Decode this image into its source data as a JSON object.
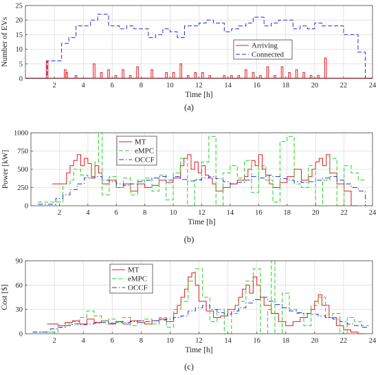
{
  "colors": {
    "red": "#e8141d",
    "blue": "#1f2fe0",
    "green": "#1ed21e",
    "grid": "#dddddd",
    "axis": "#444444"
  },
  "chart_data": [
    {
      "id": "a",
      "type": "line",
      "panel_label": "(a)",
      "xlabel": "Time [h]",
      "ylabel": "Number of EVs",
      "xlim": [
        0,
        24
      ],
      "ylim": [
        0,
        25
      ],
      "xticks": [
        2,
        4,
        6,
        8,
        10,
        12,
        14,
        16,
        18,
        20,
        22,
        24
      ],
      "yticks": [
        0,
        5,
        10,
        15,
        20,
        25
      ],
      "grid": true,
      "legend_position": "center-right",
      "series": [
        {
          "name": "Arriving",
          "color": "red",
          "style": "solid",
          "render": "spikes",
          "x": [
            1.5,
            2.75,
            2.85,
            3.5,
            4.75,
            5.25,
            5.75,
            6.25,
            6.75,
            7.25,
            7.75,
            8.75,
            9.75,
            10.25,
            10.75,
            11.25,
            11.75,
            12.25,
            12.75,
            13.75,
            14.25,
            14.75,
            15.25,
            15.75,
            16.25,
            16.75,
            17.25,
            17.75,
            18.25,
            18.75,
            19.25,
            19.75,
            20.25,
            20.75
          ],
          "values": [
            6,
            3,
            2,
            1,
            5,
            2,
            3,
            1,
            3,
            1,
            4,
            3,
            2,
            2,
            5,
            1,
            2,
            2,
            1,
            1,
            1,
            1,
            3,
            2,
            1,
            4,
            1,
            4,
            2,
            3,
            2,
            1,
            1,
            7
          ]
        },
        {
          "name": "Connected",
          "color": "blue",
          "style": "dashed",
          "render": "step",
          "x": [
            0,
            1.5,
            2.5,
            3,
            3.5,
            4.5,
            5,
            5.75,
            6.5,
            7,
            7.5,
            8.5,
            9,
            9.5,
            10,
            10.5,
            11,
            12,
            12.5,
            13,
            13.75,
            14.25,
            14.75,
            15.25,
            15.75,
            16.5,
            17,
            17.5,
            18.5,
            19,
            19.5,
            20,
            20.5,
            22,
            23,
            23.5
          ],
          "values": [
            0,
            6,
            12,
            14,
            18,
            20,
            22,
            18,
            17,
            18,
            17,
            14,
            15,
            17,
            16,
            14,
            18,
            19,
            20,
            19,
            16,
            17,
            18,
            19,
            21,
            18,
            19,
            20,
            17,
            18,
            17,
            19,
            18,
            15,
            9,
            0
          ]
        }
      ]
    },
    {
      "id": "b",
      "type": "line",
      "panel_label": "(b)",
      "xlabel": "Time [h]",
      "ylabel": "Power [kW]",
      "xlim": [
        0,
        24
      ],
      "ylim": [
        0,
        1000
      ],
      "xticks": [
        2,
        4,
        6,
        8,
        10,
        12,
        14,
        16,
        18,
        20,
        22,
        24
      ],
      "yticks": [
        0,
        250,
        500,
        750,
        1000
      ],
      "grid": true,
      "legend_position": "top-left",
      "series": [
        {
          "name": "MT",
          "color": "red",
          "style": "solid",
          "render": "step",
          "x": [
            1.5,
            2.5,
            2.75,
            3,
            3.25,
            3.5,
            3.75,
            4,
            4.25,
            4.5,
            4.75,
            5,
            5.5,
            6,
            6.5,
            7,
            7.5,
            8,
            8.5,
            9,
            9.5,
            10,
            10.5,
            10.75,
            11,
            11.25,
            11.5,
            11.75,
            12,
            12.25,
            12.5,
            12.75,
            13,
            13.5,
            14,
            14.5,
            15,
            15.25,
            15.5,
            15.75,
            16,
            16.25,
            16.5,
            16.75,
            17,
            17.5,
            18,
            18.5,
            19,
            19.5,
            19.75,
            20,
            20.25,
            20.5,
            20.75,
            21,
            21.5,
            22,
            22.5
          ],
          "values": [
            300,
            450,
            550,
            620,
            700,
            550,
            650,
            580,
            400,
            550,
            450,
            300,
            350,
            250,
            300,
            200,
            300,
            250,
            280,
            350,
            320,
            380,
            550,
            650,
            700,
            500,
            600,
            450,
            550,
            420,
            380,
            300,
            200,
            250,
            300,
            350,
            400,
            500,
            620,
            550,
            700,
            500,
            420,
            300,
            250,
            320,
            400,
            500,
            350,
            400,
            500,
            600,
            650,
            550,
            700,
            450,
            300,
            200,
            0
          ]
        },
        {
          "name": "eMPC",
          "color": "green",
          "style": "dashed",
          "render": "step",
          "x": [
            0.5,
            2.25,
            2.75,
            3,
            3.5,
            4,
            4.5,
            4.75,
            5,
            5.5,
            6,
            6.5,
            7,
            7.5,
            8,
            8.5,
            9,
            9.5,
            10,
            10.5,
            11,
            11.5,
            12,
            12.5,
            13,
            13.5,
            14,
            14.5,
            15,
            15.5,
            16,
            16.5,
            17,
            17.5,
            18,
            18.5,
            19,
            19.5,
            20,
            20.5,
            21,
            21.5,
            22,
            22.5,
            23
          ],
          "values": [
            50,
            300,
            350,
            500,
            420,
            380,
            600,
            1000,
            150,
            400,
            250,
            380,
            150,
            350,
            380,
            200,
            420,
            80,
            450,
            650,
            0,
            350,
            600,
            950,
            0,
            450,
            550,
            380,
            620,
            180,
            550,
            350,
            50,
            880,
            950,
            300,
            250,
            550,
            0,
            350,
            650,
            0,
            550,
            450,
            350
          ]
        },
        {
          "name": "OCCF",
          "color": "blue",
          "style": "dashdot",
          "render": "step",
          "x": [
            0.5,
            1.75,
            2.25,
            2.75,
            3.25,
            3.75,
            4.5,
            5,
            5.5,
            6,
            6.5,
            7,
            7.5,
            8,
            8.5,
            9,
            9.5,
            10,
            10.5,
            11,
            11.5,
            12,
            12.5,
            13,
            13.5,
            14,
            14.5,
            15,
            15.5,
            16,
            16.5,
            17,
            17.5,
            18,
            18.5,
            19,
            19.5,
            20,
            20.5,
            21,
            21.5,
            22,
            22.5,
            23,
            23.5
          ],
          "values": [
            20,
            100,
            150,
            220,
            300,
            380,
            400,
            350,
            330,
            300,
            280,
            300,
            330,
            350,
            380,
            400,
            350,
            400,
            360,
            340,
            360,
            380,
            400,
            370,
            330,
            300,
            320,
            350,
            400,
            380,
            420,
            400,
            370,
            350,
            330,
            320,
            330,
            350,
            380,
            400,
            350,
            300,
            250,
            200,
            0
          ]
        }
      ]
    },
    {
      "id": "c",
      "type": "line",
      "panel_label": "(c)",
      "xlabel": "Time [h]",
      "ylabel": "Cost [$]",
      "xlim": [
        0,
        24
      ],
      "ylim": [
        0,
        90
      ],
      "xticks": [
        2,
        4,
        6,
        8,
        10,
        12,
        14,
        16,
        18,
        20,
        22,
        24
      ],
      "yticks": [
        0,
        30,
        60,
        90
      ],
      "grid": true,
      "legend_position": "top-center",
      "series": [
        {
          "name": "MT",
          "color": "red",
          "style": "solid",
          "render": "step",
          "x": [
            1.5,
            2.25,
            2.75,
            3.25,
            3.75,
            4.25,
            4.75,
            5.25,
            5.75,
            6.25,
            6.75,
            7.25,
            7.75,
            8.25,
            8.75,
            9.25,
            9.75,
            10.25,
            10.5,
            10.75,
            11,
            11.25,
            11.5,
            11.75,
            12,
            12.5,
            13,
            13.5,
            14,
            14.5,
            14.75,
            15,
            15.25,
            15.5,
            15.75,
            16,
            16.25,
            16.5,
            17,
            17.5,
            18,
            18.5,
            19,
            19.5,
            19.75,
            20,
            20.25,
            20.5,
            21,
            21.5,
            22,
            22.5,
            23
          ],
          "values": [
            12,
            10,
            14,
            16,
            12,
            18,
            14,
            16,
            12,
            15,
            12,
            16,
            14,
            12,
            16,
            18,
            15,
            25,
            35,
            45,
            55,
            70,
            75,
            60,
            40,
            28,
            20,
            22,
            30,
            35,
            45,
            55,
            60,
            50,
            70,
            60,
            45,
            35,
            25,
            15,
            10,
            15,
            20,
            25,
            30,
            40,
            48,
            35,
            20,
            10,
            5,
            2,
            0
          ]
        },
        {
          "name": "eMPC",
          "color": "green",
          "style": "dashed",
          "render": "step",
          "x": [
            0.5,
            2.25,
            2.75,
            3.25,
            3.75,
            4.25,
            4.75,
            5.25,
            5.75,
            6.25,
            6.75,
            7.25,
            7.75,
            8.25,
            8.75,
            9.25,
            9.75,
            10.25,
            10.75,
            11.25,
            11.75,
            12.25,
            12.75,
            13.25,
            13.75,
            14.25,
            14.75,
            15.25,
            15.75,
            16.25,
            16.75,
            17,
            17.25,
            17.75,
            18.25,
            18.75,
            19.25,
            19.75,
            20.25,
            20.75,
            21.25,
            21.75,
            22.25,
            22.75,
            23.25
          ],
          "values": [
            2,
            8,
            12,
            15,
            20,
            28,
            22,
            16,
            18,
            14,
            20,
            10,
            16,
            18,
            12,
            20,
            8,
            30,
            40,
            65,
            80,
            45,
            15,
            30,
            0,
            25,
            40,
            65,
            80,
            0,
            30,
            90,
            0,
            50,
            30,
            25,
            10,
            35,
            45,
            20,
            25,
            0,
            20,
            15,
            10
          ]
        },
        {
          "name": "OCCF",
          "color": "blue",
          "style": "dashdot",
          "render": "step",
          "x": [
            0.5,
            1.75,
            2.25,
            2.75,
            3.25,
            3.75,
            4.25,
            4.75,
            5.25,
            5.75,
            6.25,
            6.75,
            7.25,
            7.75,
            8.25,
            8.75,
            9.25,
            9.75,
            10.25,
            10.75,
            11.25,
            11.75,
            12.25,
            12.75,
            13.25,
            13.75,
            14.25,
            14.75,
            15.25,
            15.75,
            16.25,
            16.75,
            17.25,
            17.75,
            18.25,
            18.75,
            19.25,
            19.75,
            20.25,
            20.75,
            21.25,
            21.75,
            22.25,
            22.75,
            23.25
          ],
          "values": [
            2,
            6,
            8,
            10,
            12,
            11,
            12,
            13,
            14,
            13,
            15,
            14,
            15,
            16,
            15,
            16,
            17,
            18,
            20,
            22,
            28,
            32,
            35,
            30,
            26,
            24,
            28,
            32,
            38,
            42,
            45,
            40,
            36,
            32,
            28,
            26,
            25,
            24,
            22,
            20,
            18,
            15,
            12,
            10,
            8
          ]
        }
      ]
    }
  ]
}
